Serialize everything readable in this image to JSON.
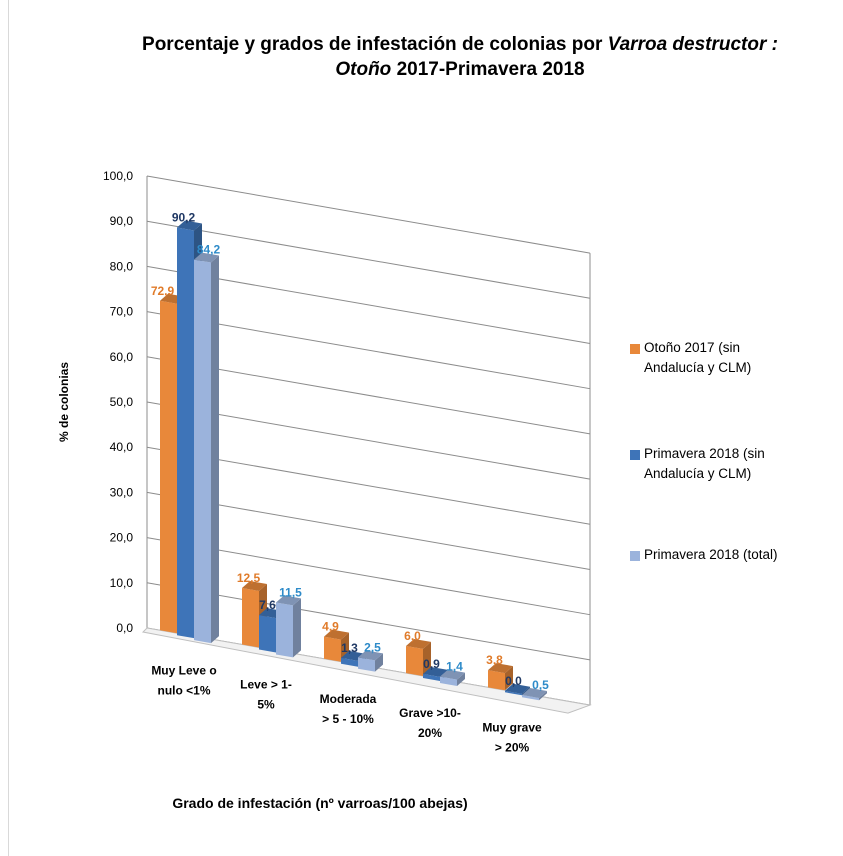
{
  "chart_data": {
    "type": "bar",
    "title_part1": "Porcentaje y grados de infestación de colonias por ",
    "title_species": "Varroa destructor :",
    "title_season": "Otoño",
    "title_part2": " 2017-Primavera 2018",
    "xlabel": "Grado de infestación (nº varroas/100 abejas)",
    "ylabel": "% de  colonias",
    "ylim": [
      0,
      100
    ],
    "yticks": [
      "0,0",
      "10,0",
      "20,0",
      "30,0",
      "40,0",
      "50,0",
      "60,0",
      "70,0",
      "80,0",
      "90,0",
      "100,0"
    ],
    "grid": true,
    "legend_position": "right",
    "categories": [
      [
        "Muy Leve o",
        "nulo <1%"
      ],
      [
        "Leve  > 1-",
        "5%"
      ],
      [
        "Moderada",
        "> 5 - 10%"
      ],
      [
        "Grave >10-",
        "20%"
      ],
      [
        "Muy grave",
        "> 20%"
      ]
    ],
    "series": [
      {
        "name": "Otoño 2017 (sin Andalucía y CLM)",
        "values": [
          72.9,
          12.5,
          4.9,
          6.0,
          3.8
        ],
        "labels": [
          "72,9",
          "12,5",
          "4,9",
          "6,0",
          "3,8"
        ],
        "color": "#E8883A",
        "label_color": "#E07B2A"
      },
      {
        "name": "Primavera 2018 (sin Andalucía y CLM)",
        "values": [
          90.2,
          7.6,
          1.3,
          0.9,
          0.0
        ],
        "labels": [
          "90,2",
          "7,6",
          "1,3",
          "0,9",
          "0,0"
        ],
        "color": "#3E74B8",
        "label_color": "#1F3864"
      },
      {
        "name": "Primavera 2018 (total)",
        "values": [
          84.2,
          11.5,
          2.5,
          1.4,
          0.5
        ],
        "labels": [
          "84,2",
          "11,5",
          "2,5",
          "1,4",
          "0,5"
        ],
        "color": "#9BB3DC",
        "label_color": "#2E8BC9"
      }
    ]
  },
  "legend": {
    "item0": {
      "line1": "Otoño 2017 (sin",
      "line2": "Andalucía y CLM)"
    },
    "item1": {
      "line1": "Primavera 2018 (sin",
      "line2": "Andalucía y CLM)"
    },
    "item2": {
      "line1": "Primavera 2018 (total)"
    }
  }
}
